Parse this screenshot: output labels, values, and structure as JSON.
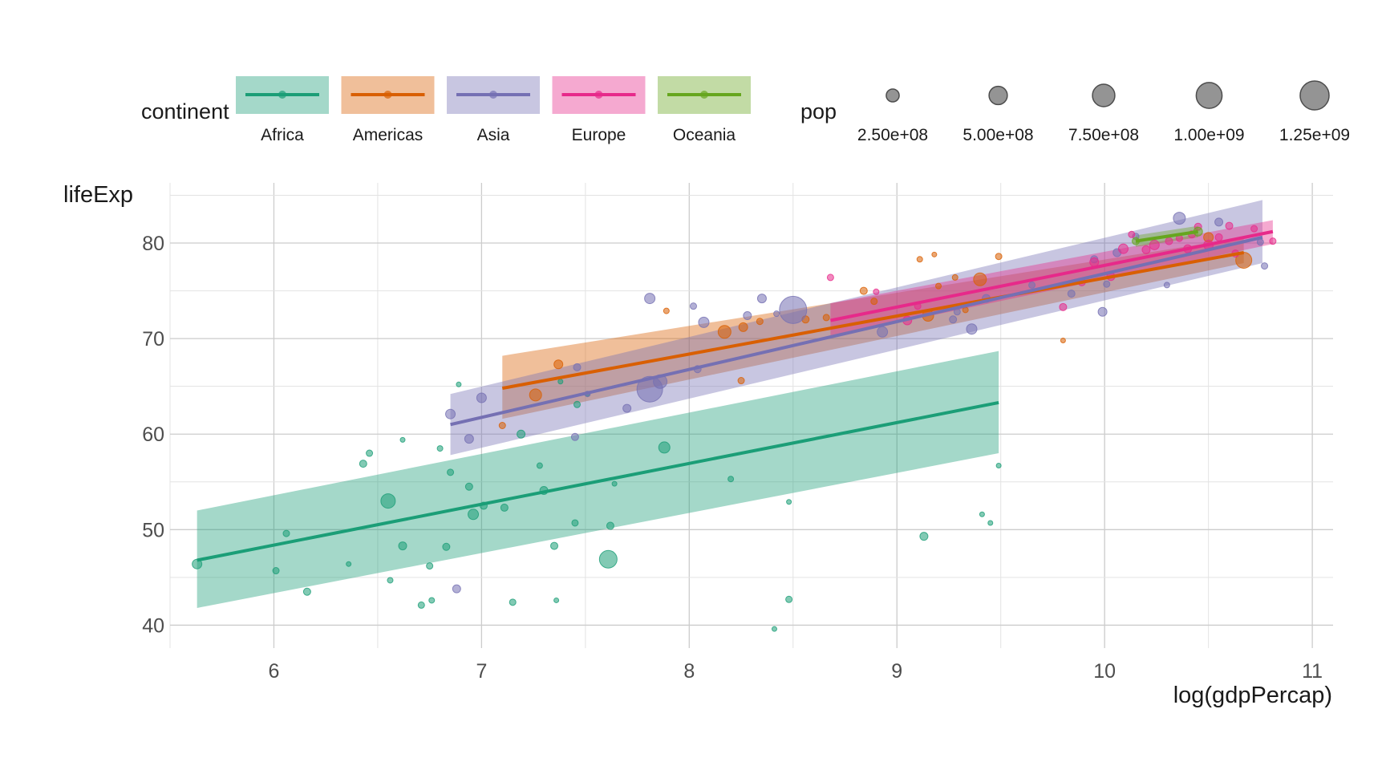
{
  "chart_data": {
    "type": "scatter",
    "title": "",
    "xlabel": "log(gdpPercap)",
    "ylabel": "lifeExp",
    "xlim": [
      5.5,
      11.1
    ],
    "ylim": [
      37.6,
      86.3
    ],
    "x_ticks": [
      6,
      7,
      8,
      9,
      10,
      11
    ],
    "y_ticks": [
      40,
      50,
      60,
      70,
      80
    ],
    "grid": true,
    "legend_placement": "top",
    "continent_legend": {
      "title": "continent",
      "entries": [
        {
          "name": "Africa",
          "color": "#1b9e77"
        },
        {
          "name": "Americas",
          "color": "#d95f02"
        },
        {
          "name": "Asia",
          "color": "#7570b3"
        },
        {
          "name": "Europe",
          "color": "#e7298a"
        },
        {
          "name": "Oceania",
          "color": "#66a61e"
        }
      ]
    },
    "pop_legend": {
      "title": "pop",
      "entries": [
        {
          "label": "2.50e+08",
          "value": 250000000
        },
        {
          "label": "5.00e+08",
          "value": 500000000
        },
        {
          "label": "7.50e+08",
          "value": 750000000
        },
        {
          "label": "1.00e+09",
          "value": 1000000000
        },
        {
          "label": "1.25e+09",
          "value": 1250000000
        }
      ]
    },
    "series": [
      {
        "name": "Africa",
        "color": "#1b9e77",
        "fit": {
          "x": [
            5.63,
            9.49
          ],
          "y": [
            46.8,
            63.3
          ]
        },
        "band": {
          "x": [
            5.63,
            9.49
          ],
          "lower": [
            41.8,
            58.0
          ],
          "upper": [
            52.0,
            68.7
          ]
        },
        "points": [
          [
            5.63,
            46.4,
            12
          ],
          [
            6.01,
            45.7,
            8
          ],
          [
            6.06,
            49.6,
            8
          ],
          [
            6.16,
            43.5,
            9
          ],
          [
            6.36,
            46.4,
            6
          ],
          [
            6.43,
            56.9,
            9
          ],
          [
            6.46,
            58.0,
            8
          ],
          [
            6.55,
            53.0,
            18
          ],
          [
            6.56,
            44.7,
            7
          ],
          [
            6.62,
            59.4,
            6
          ],
          [
            6.62,
            48.3,
            10
          ],
          [
            6.71,
            42.1,
            8
          ],
          [
            6.75,
            46.2,
            8
          ],
          [
            6.76,
            42.6,
            7
          ],
          [
            6.8,
            58.5,
            7
          ],
          [
            6.83,
            48.2,
            9
          ],
          [
            6.85,
            56.0,
            8
          ],
          [
            6.89,
            65.2,
            6
          ],
          [
            6.94,
            54.5,
            9
          ],
          [
            6.96,
            51.6,
            13
          ],
          [
            7.01,
            52.5,
            9
          ],
          [
            7.11,
            52.3,
            9
          ],
          [
            7.15,
            42.4,
            8
          ],
          [
            7.19,
            60.0,
            10
          ],
          [
            7.28,
            56.7,
            7
          ],
          [
            7.3,
            54.1,
            10
          ],
          [
            7.35,
            48.3,
            9
          ],
          [
            7.36,
            42.6,
            6
          ],
          [
            7.38,
            65.5,
            6
          ],
          [
            7.45,
            50.7,
            8
          ],
          [
            7.46,
            63.1,
            8
          ],
          [
            7.51,
            64.2,
            6
          ],
          [
            7.61,
            46.9,
            22
          ],
          [
            7.62,
            50.4,
            9
          ],
          [
            7.64,
            54.8,
            6
          ],
          [
            7.88,
            58.6,
            14
          ],
          [
            8.2,
            55.3,
            7
          ],
          [
            8.41,
            39.6,
            6
          ],
          [
            8.48,
            52.9,
            6
          ],
          [
            8.48,
            42.7,
            8
          ],
          [
            9.13,
            49.3,
            10
          ],
          [
            9.41,
            51.6,
            6
          ],
          [
            9.45,
            50.7,
            6
          ],
          [
            9.49,
            56.7,
            6
          ]
        ]
      },
      {
        "name": "Americas",
        "color": "#d95f02",
        "fit": {
          "x": [
            7.1,
            10.67
          ],
          "y": [
            64.8,
            79.0
          ]
        },
        "band": {
          "x": [
            7.1,
            10.67
          ],
          "lower": [
            61.6,
            77.9
          ],
          "upper": [
            68.2,
            80.6
          ]
        },
        "points": [
          [
            7.1,
            60.9,
            8
          ],
          [
            7.26,
            64.1,
            15
          ],
          [
            7.37,
            67.3,
            11
          ],
          [
            7.89,
            72.9,
            7
          ],
          [
            8.17,
            70.7,
            16
          ],
          [
            8.26,
            71.2,
            11
          ],
          [
            8.25,
            65.6,
            8
          ],
          [
            8.34,
            71.8,
            8
          ],
          [
            8.56,
            72.0,
            9
          ],
          [
            8.66,
            72.2,
            8
          ],
          [
            8.84,
            75.0,
            9
          ],
          [
            8.89,
            73.9,
            8
          ],
          [
            9.11,
            78.3,
            7
          ],
          [
            9.15,
            72.4,
            14
          ],
          [
            9.18,
            78.8,
            6
          ],
          [
            9.2,
            75.5,
            7
          ],
          [
            9.28,
            76.4,
            7
          ],
          [
            9.33,
            73.0,
            7
          ],
          [
            9.4,
            76.2,
            16
          ],
          [
            9.49,
            78.6,
            8
          ],
          [
            9.8,
            69.8,
            6
          ],
          [
            10.67,
            78.2,
            20
          ],
          [
            10.5,
            80.6,
            12
          ]
        ]
      },
      {
        "name": "Asia",
        "color": "#7570b3",
        "fit": {
          "x": [
            6.85,
            10.76
          ],
          "y": [
            61.0,
            80.6
          ]
        },
        "band": {
          "x": [
            6.85,
            10.76
          ],
          "lower": [
            57.8,
            77.9
          ],
          "upper": [
            64.2,
            84.5
          ]
        },
        "points": [
          [
            6.85,
            62.1,
            12
          ],
          [
            6.88,
            43.8,
            10
          ],
          [
            6.94,
            59.5,
            11
          ],
          [
            7.0,
            63.8,
            12
          ],
          [
            7.45,
            59.7,
            9
          ],
          [
            7.46,
            67.0,
            9
          ],
          [
            7.51,
            64.2,
            7
          ],
          [
            7.7,
            62.7,
            10
          ],
          [
            7.81,
            64.7,
            32
          ],
          [
            7.81,
            74.2,
            13
          ],
          [
            7.86,
            65.5,
            17
          ],
          [
            8.02,
            73.4,
            8
          ],
          [
            8.04,
            66.8,
            9
          ],
          [
            8.07,
            71.7,
            13
          ],
          [
            8.28,
            72.4,
            10
          ],
          [
            8.35,
            74.2,
            11
          ],
          [
            8.42,
            72.6,
            7
          ],
          [
            8.5,
            73.0,
            34
          ],
          [
            8.93,
            70.7,
            13
          ],
          [
            9.27,
            72.0,
            9
          ],
          [
            9.29,
            72.8,
            8
          ],
          [
            9.36,
            71.0,
            13
          ],
          [
            9.43,
            74.2,
            10
          ],
          [
            9.65,
            75.6,
            8
          ],
          [
            9.84,
            74.7,
            9
          ],
          [
            9.95,
            78.3,
            9
          ],
          [
            9.99,
            72.8,
            11
          ],
          [
            10.01,
            75.7,
            8
          ],
          [
            10.06,
            79.0,
            10
          ],
          [
            10.15,
            80.7,
            8
          ],
          [
            10.3,
            75.6,
            7
          ],
          [
            10.36,
            82.6,
            15
          ],
          [
            10.55,
            82.2,
            10
          ],
          [
            10.75,
            80.1,
            8
          ],
          [
            10.77,
            77.6,
            8
          ]
        ]
      },
      {
        "name": "Europe",
        "color": "#e7298a",
        "fit": {
          "x": [
            8.68,
            10.81
          ],
          "y": [
            71.9,
            81.2
          ]
        },
        "band": {
          "x": [
            8.68,
            10.81
          ],
          "lower": [
            70.2,
            79.9
          ],
          "upper": [
            73.7,
            82.4
          ]
        },
        "points": [
          [
            8.68,
            76.4,
            8
          ],
          [
            8.9,
            74.9,
            7
          ],
          [
            9.05,
            71.9,
            11
          ],
          [
            9.1,
            73.4,
            8
          ],
          [
            9.8,
            73.3,
            9
          ],
          [
            9.89,
            75.9,
            9
          ],
          [
            9.95,
            78.0,
            11
          ],
          [
            10.03,
            76.5,
            10
          ],
          [
            10.09,
            79.4,
            12
          ],
          [
            10.13,
            80.9,
            8
          ],
          [
            10.2,
            79.3,
            10
          ],
          [
            10.24,
            79.8,
            12
          ],
          [
            10.31,
            80.2,
            9
          ],
          [
            10.36,
            80.5,
            8
          ],
          [
            10.4,
            79.4,
            10
          ],
          [
            10.42,
            80.9,
            9
          ],
          [
            10.45,
            81.7,
            9
          ],
          [
            10.5,
            79.8,
            12
          ],
          [
            10.55,
            80.6,
            9
          ],
          [
            10.6,
            81.8,
            9
          ],
          [
            10.63,
            78.9,
            9
          ],
          [
            10.72,
            81.5,
            8
          ],
          [
            10.81,
            80.2,
            8
          ]
        ]
      },
      {
        "name": "Oceania",
        "color": "#66a61e",
        "fit": {
          "x": [
            10.15,
            10.45
          ],
          "y": [
            80.2,
            81.2
          ]
        },
        "band": {
          "x": [
            10.15,
            10.45
          ],
          "lower": [
            79.6,
            80.6
          ],
          "upper": [
            80.8,
            81.8
          ]
        },
        "points": [
          [
            10.15,
            80.2,
            9
          ],
          [
            10.45,
            81.2,
            11
          ]
        ]
      }
    ]
  }
}
